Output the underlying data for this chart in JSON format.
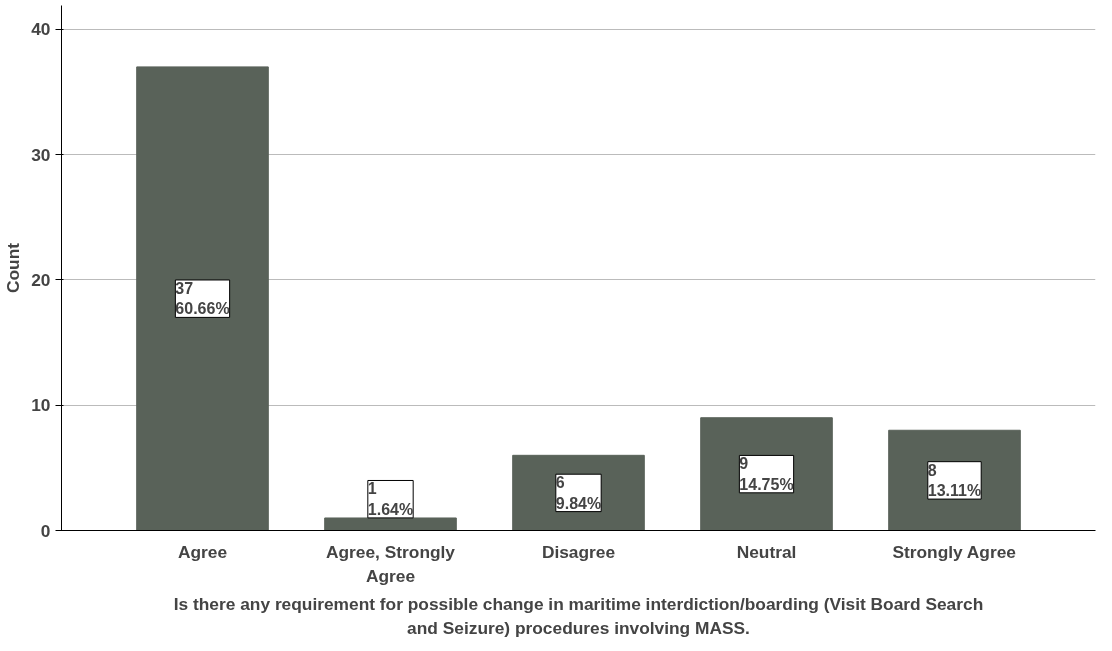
{
  "chart_data": {
    "type": "bar",
    "xlabel": "Is there any requirement for possible change in maritime interdiction/boarding (Visit Board Search\nand Seizure) procedures involving MASS.",
    "ylabel": "Count",
    "categories": [
      "Agree",
      "Agree, Strongly Agree",
      "Disagree",
      "Neutral",
      "Strongly Agree"
    ],
    "values": [
      37,
      1,
      6,
      9,
      8
    ],
    "value_labels": [
      "37\n60.66%",
      "1\n1.64%",
      "6\n9.84%",
      "9\n14.75%",
      "8\n13.11%"
    ],
    "color": "#596259",
    "ylim": [
      0,
      41.9
    ],
    "yticks": [
      0,
      10,
      20,
      30,
      40
    ],
    "grid": "y"
  }
}
